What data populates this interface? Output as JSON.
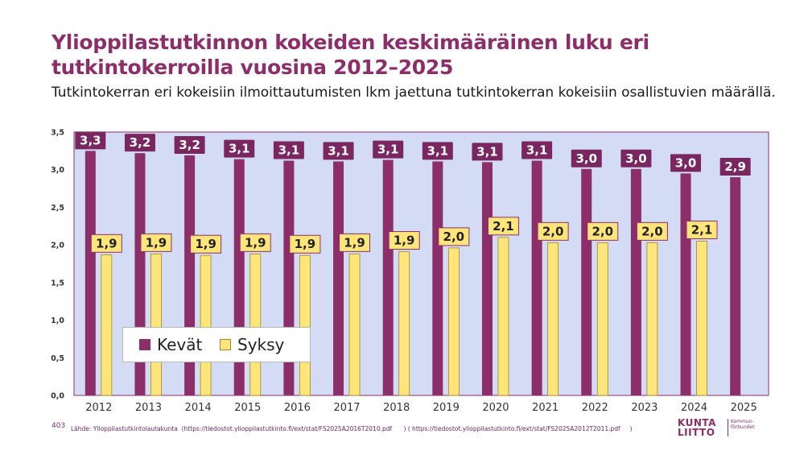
{
  "title": "Ylioppilastutkinnon kokeiden keskimääräinen luku eri tutkintokerroilla vuosina 2012–2025",
  "subtitle": "Tutkintokerran eri kokeisiin ilmoittautumisten lkm jaettuna tutkintokerran kokeisiin osallistuvien määrällä.",
  "page_number": "403",
  "source": "Lähde: Ylioppilastutkintolautakunta  (https://tiedostot.ylioppilastutkinto.fi/ext/stat/FS2025A2016T2010.pdf      ) ( https://tiedostot.ylioppilastutkinto.fi/ext/stat/FS2025A2012T2011.pdf     )",
  "logo": {
    "main": "KUNTA\nLIITTO",
    "sub": "Kommun-\nförbundet"
  },
  "colors": {
    "kevat": "#8b2e6a",
    "syksy": "#ffe57a",
    "plot_bg": "#d4dcf5",
    "title": "#8b2e6a"
  },
  "chart_data": {
    "type": "bar",
    "categories": [
      "2012",
      "2013",
      "2014",
      "2015",
      "2016",
      "2017",
      "2018",
      "2019",
      "2020",
      "2021",
      "2022",
      "2023",
      "2024",
      "2025"
    ],
    "series": [
      {
        "name": "Kevät",
        "values": [
          3.25,
          3.22,
          3.19,
          3.14,
          3.12,
          3.11,
          3.13,
          3.11,
          3.1,
          3.12,
          3.01,
          3.01,
          2.95,
          2.9
        ],
        "labels": [
          "3,3",
          "3,2",
          "3,2",
          "3,1",
          "3,1",
          "3,1",
          "3,1",
          "3,1",
          "3,1",
          "3,1",
          "3,0",
          "3,0",
          "3,0",
          "2,9"
        ]
      },
      {
        "name": "Syksy",
        "values": [
          1.87,
          1.88,
          1.86,
          1.88,
          1.86,
          1.88,
          1.91,
          1.96,
          2.1,
          2.03,
          2.03,
          2.03,
          2.05,
          null
        ],
        "labels": [
          "1,9",
          "1,9",
          "1,9",
          "1,9",
          "1,9",
          "1,9",
          "1,9",
          "2,0",
          "2,1",
          "2,0",
          "2,0",
          "2,0",
          "2,1",
          ""
        ]
      }
    ],
    "ylim": [
      0,
      3.5
    ],
    "yticks": [
      "0,0",
      "0,5",
      "1,0",
      "1,5",
      "2,0",
      "2,5",
      "3,0",
      "3,5"
    ],
    "legend": "bottom-left inside plot",
    "grid": false
  }
}
